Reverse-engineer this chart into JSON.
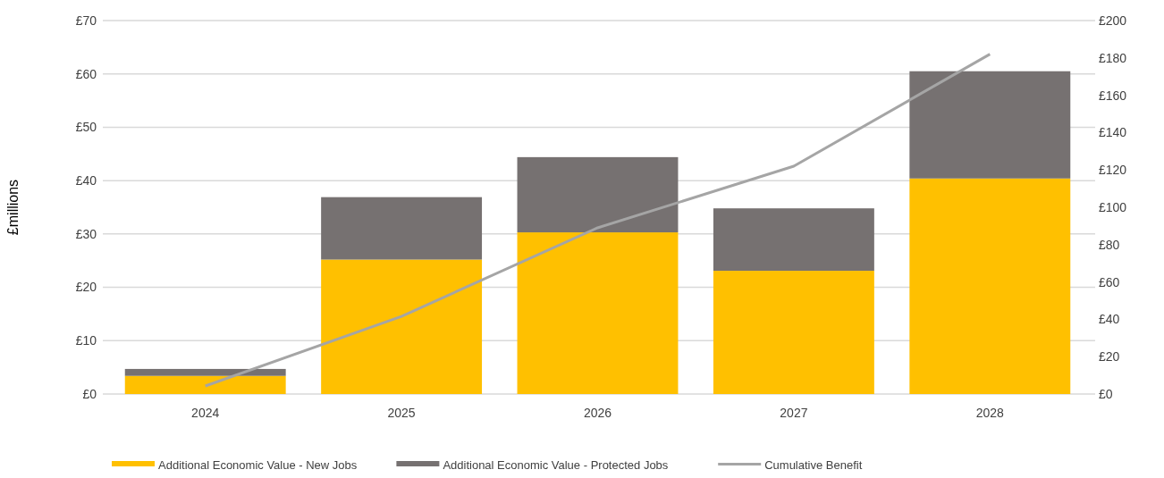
{
  "chart_data": {
    "type": "bar",
    "stacked": true,
    "categories": [
      "2024",
      "2025",
      "2026",
      "2027",
      "2028"
    ],
    "ylabel": "£millions",
    "series": [
      {
        "name": "Additional Economic Value - New Jobs",
        "color": "#ffc000",
        "values": [
          3.4,
          25.2,
          30.3,
          23.1,
          40.4
        ]
      },
      {
        "name": "Additional Economic Value - Protected Jobs",
        "color": "#767171",
        "values": [
          1.3,
          11.7,
          14.1,
          11.7,
          20.1
        ]
      },
      {
        "name": "Cumulative Benefit",
        "type": "line",
        "axis": "y2",
        "color": "#a5a5a5",
        "values": [
          4.3,
          41.6,
          89,
          122,
          182
        ]
      }
    ],
    "ylim": [
      0,
      70
    ],
    "yticks": [
      {
        "value": 0,
        "label": "£0"
      },
      {
        "value": 10,
        "label": "£10"
      },
      {
        "value": 20,
        "label": "£20"
      },
      {
        "value": 30,
        "label": "£30"
      },
      {
        "value": 40,
        "label": "£40"
      },
      {
        "value": 50,
        "label": "£50"
      },
      {
        "value": 60,
        "label": "£60"
      },
      {
        "value": 70,
        "label": "£70"
      }
    ],
    "y2lim": [
      0,
      200
    ],
    "y2ticks": [
      {
        "value": 0,
        "label": "£0"
      },
      {
        "value": 20,
        "label": "£20"
      },
      {
        "value": 40,
        "label": "£40"
      },
      {
        "value": 60,
        "label": "£60"
      },
      {
        "value": 80,
        "label": "£80"
      },
      {
        "value": 100,
        "label": "£100"
      },
      {
        "value": 120,
        "label": "£120"
      },
      {
        "value": 140,
        "label": "£140"
      },
      {
        "value": 160,
        "label": "£160"
      },
      {
        "value": 180,
        "label": "£180"
      },
      {
        "value": 200,
        "label": "£200"
      }
    ],
    "grid": "y",
    "legend": "bottom"
  }
}
